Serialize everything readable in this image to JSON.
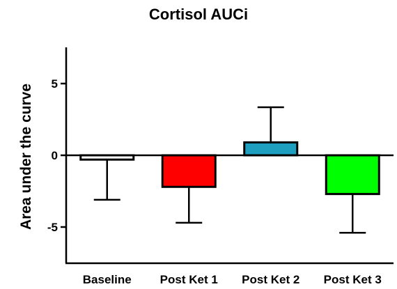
{
  "chart_data": {
    "type": "bar",
    "title": "Cortisol AUCi",
    "xlabel": "",
    "ylabel": "Area under the curve",
    "categories": [
      "Baseline",
      "Post Ket 1",
      "Post Ket 2",
      "Post Ket 3"
    ],
    "values": [
      -0.3,
      -2.2,
      0.9,
      -2.7
    ],
    "error_bars": [
      2.8,
      2.5,
      2.45,
      2.7
    ],
    "error_direction": "away_from_zero",
    "colors": [
      "#ffffff",
      "#ff0000",
      "#1f9fbf",
      "#00ff00"
    ],
    "ylim": [
      -7.5,
      7.5
    ],
    "yticks": [
      -5,
      0,
      5
    ],
    "grid": false,
    "legend": "none"
  }
}
